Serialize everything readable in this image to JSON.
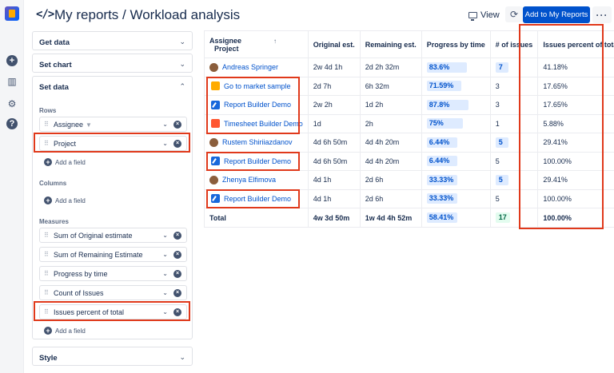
{
  "header": {
    "title": "My reports  / Workload analysis",
    "view_label": "View",
    "add_button": "Add to My Reports"
  },
  "left_panel": {
    "get_data": "Get data",
    "set_chart": "Set chart",
    "set_data": "Set data",
    "rows_label": "Rows",
    "rows": [
      "Assignee",
      "Project"
    ],
    "add_field": "Add a field",
    "columns_label": "Columns",
    "measures_label": "Measures",
    "measures": [
      "Sum of Original estimate",
      "Sum of Remaining Estimate",
      "Progress by time",
      "Count of Issues",
      "Issues percent of total"
    ],
    "style": "Style"
  },
  "table": {
    "headers": {
      "assignee": "Assignee",
      "project": "Project",
      "original": "Original est.",
      "remaining": "Remaining est.",
      "progress": "Progress by time",
      "issues": "# of issues",
      "percent": "Issues percent of total"
    },
    "rows": [
      {
        "name": "Andreas Springer",
        "type": "assignee",
        "original": "2w 4d 1h",
        "remaining": "2d 2h 32m",
        "progress": "83.6%",
        "progress_fraction": 0.836,
        "issues": "7",
        "badge": true,
        "percent": "41.18%"
      },
      {
        "name": "Go to market sample",
        "type": "project",
        "icon": "gm",
        "original": "2d 7h",
        "remaining": "6h 32m",
        "progress": "71.59%",
        "progress_fraction": 0.716,
        "issues": "3",
        "badge": false,
        "percent": "17.65%"
      },
      {
        "name": "Report Builder Demo",
        "type": "project",
        "icon": "rb",
        "original": "2w 2h",
        "remaining": "1d 2h",
        "progress": "87.8%",
        "progress_fraction": 0.878,
        "issues": "3",
        "badge": false,
        "percent": "17.65%"
      },
      {
        "name": "Timesheet Builder Demo",
        "type": "project",
        "icon": "tb",
        "original": "1d",
        "remaining": "2h",
        "progress": "75%",
        "progress_fraction": 0.75,
        "issues": "1",
        "badge": false,
        "percent": "5.88%"
      },
      {
        "name": "Rustem Shiriiazdanov",
        "type": "assignee",
        "original": "4d 6h 50m",
        "remaining": "4d 4h 20m",
        "progress": "6.44%",
        "progress_fraction": 0.0644,
        "issues": "5",
        "badge": true,
        "percent": "29.41%"
      },
      {
        "name": "Report Builder Demo",
        "type": "project",
        "icon": "rb",
        "original": "4d 6h 50m",
        "remaining": "4d 4h 20m",
        "progress": "6.44%",
        "progress_fraction": 0.0644,
        "issues": "5",
        "badge": false,
        "percent": "100.00%"
      },
      {
        "name": "Zhenya Elfimova",
        "type": "assignee",
        "original": "4d 1h",
        "remaining": "2d 6h",
        "progress": "33.33%",
        "progress_fraction": 0.3333,
        "issues": "5",
        "badge": true,
        "percent": "29.41%"
      },
      {
        "name": "Report Builder Demo",
        "type": "project",
        "icon": "rb",
        "original": "4d 1h",
        "remaining": "2d 6h",
        "progress": "33.33%",
        "progress_fraction": 0.3333,
        "issues": "5",
        "badge": false,
        "percent": "100.00%"
      }
    ],
    "total": {
      "label": "Total",
      "original": "4w 3d 50m",
      "remaining": "1w 4d 4h 52m",
      "progress": "58.41%",
      "progress_fraction": 0.5841,
      "issues": "17",
      "percent": "100.00%"
    }
  },
  "colors": {
    "accent": "#0052cc",
    "highlight": "#e0391b",
    "bar": "#deebff"
  }
}
